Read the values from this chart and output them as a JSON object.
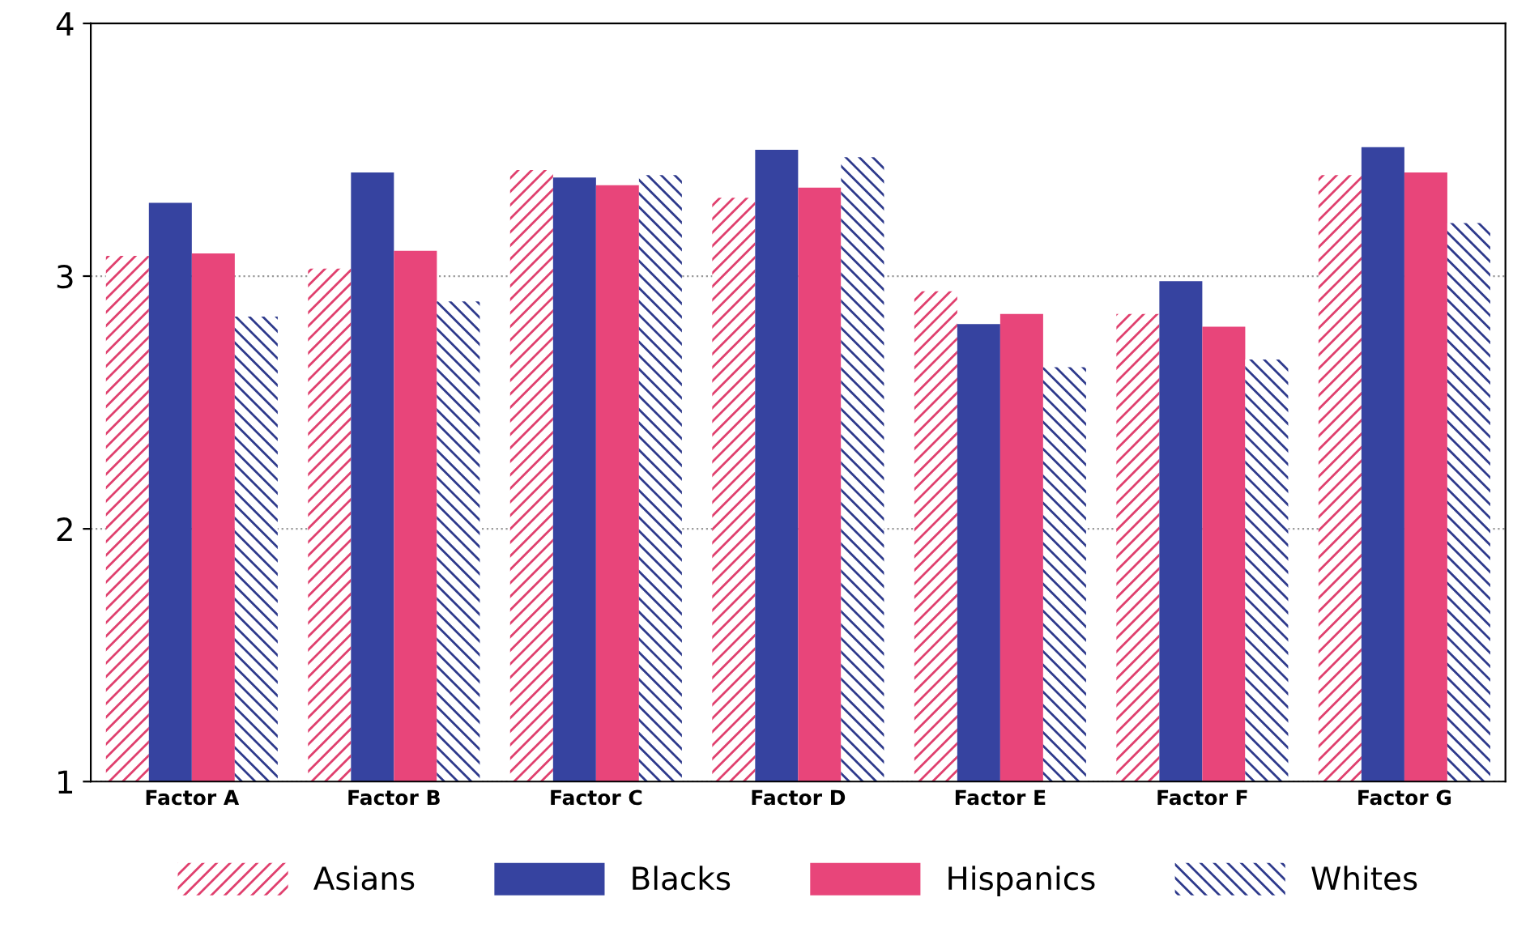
{
  "chart_data": {
    "type": "bar",
    "categories": [
      "Factor A",
      "Factor B",
      "Factor C",
      "Factor D",
      "Factor E",
      "Factor F",
      "Factor G"
    ],
    "series": [
      {
        "name": "Asians",
        "color": "#e0406e",
        "values": [
          3.08,
          3.03,
          3.42,
          3.31,
          2.94,
          2.85,
          3.4
        ]
      },
      {
        "name": "Blacks",
        "color": "#3643a0",
        "values": [
          3.29,
          3.41,
          3.39,
          3.5,
          2.81,
          2.98,
          3.51
        ]
      },
      {
        "name": "Hispanics",
        "color": "#e8457a",
        "values": [
          3.09,
          3.1,
          3.36,
          3.35,
          2.85,
          2.8,
          3.41
        ]
      },
      {
        "name": "Whites",
        "color": "#2e3a8c",
        "values": [
          2.84,
          2.9,
          3.4,
          3.47,
          2.64,
          2.67,
          3.21
        ]
      }
    ],
    "ylim": [
      1,
      4
    ],
    "yticks": [
      1,
      2,
      3,
      4
    ],
    "grid": "y",
    "legend": "bottom"
  }
}
